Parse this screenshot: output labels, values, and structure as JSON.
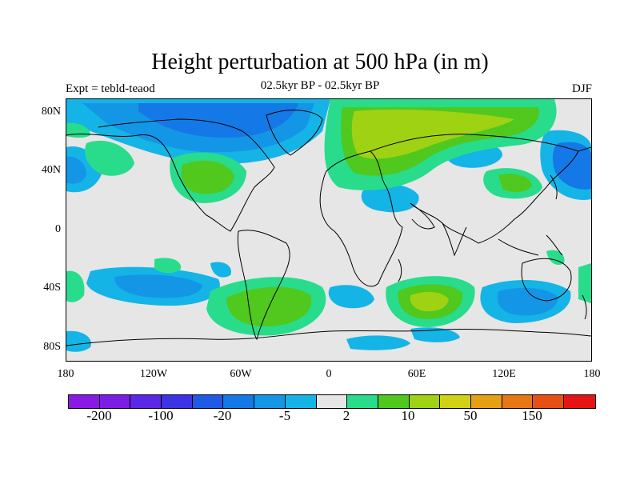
{
  "title": "Height perturbation at 500 hPa (in m)",
  "subtitle_left": "Expt = tebld-teaod",
  "subtitle_center": "02.5kyr BP - 02.5kyr BP",
  "subtitle_right": "DJF",
  "lat_labels": [
    "80N",
    "40N",
    "0",
    "40S",
    "80S"
  ],
  "lon_labels": [
    "180",
    "120W",
    "60W",
    "0",
    "60E",
    "120E",
    "180"
  ],
  "colorbar": {
    "colors": [
      "#8c1ae6",
      "#7a1ee6",
      "#5a28e6",
      "#3c32e6",
      "#1e5ae6",
      "#1478e6",
      "#1496e6",
      "#14b4e6",
      "#e6e6e6",
      "#28dc8c",
      "#50c81e",
      "#a0d214",
      "#d2d214",
      "#e6a014",
      "#e67814",
      "#e65014",
      "#e61414"
    ],
    "tick_labels": [
      "-200",
      "-100",
      "-20",
      "-5",
      "2",
      "10",
      "50",
      "150"
    ]
  },
  "field_colors": {
    "neg_light": "#14b4e6",
    "neg_mid": "#1496e6",
    "neg_strong": "#1478e6",
    "neutral": "#e6e6e6",
    "pos_light": "#28dc8c",
    "pos_mid": "#50c81e",
    "pos_strong": "#a0d214"
  }
}
